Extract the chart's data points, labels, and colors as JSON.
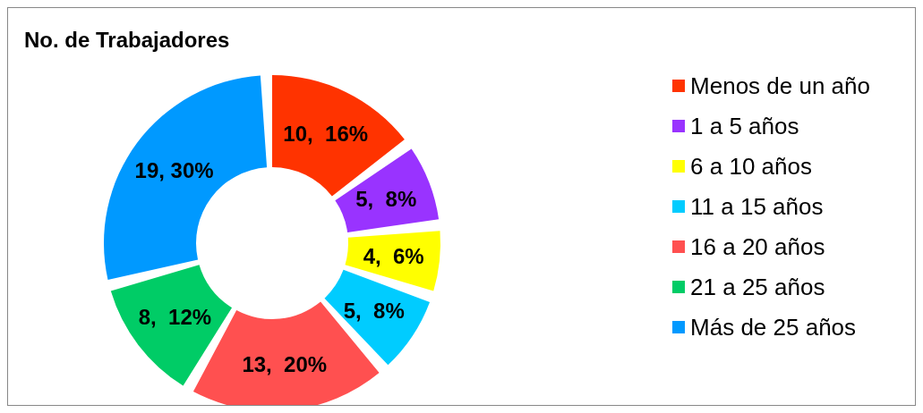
{
  "chart_data": {
    "type": "donut",
    "title": "No. de Trabajadores",
    "categories": [
      "Menos de un año",
      "1 a 5 años",
      "6 a 10 años",
      "11 a 15 años",
      "16 a 20 años",
      "21 a 25 años",
      "Más de 25 años"
    ],
    "values": [
      10,
      5,
      4,
      5,
      13,
      8,
      19
    ],
    "colors": [
      "#ff3300",
      "#9933ff",
      "#ffff00",
      "#00ccff",
      "#ff5050",
      "#00cc66",
      "#0099ff"
    ],
    "value_labels": [
      "10,  16%",
      "5,  8%",
      "4,  6%",
      "5,  8%",
      "13,  20%",
      "8,  12%",
      "19, 30%"
    ],
    "legend": "right"
  }
}
